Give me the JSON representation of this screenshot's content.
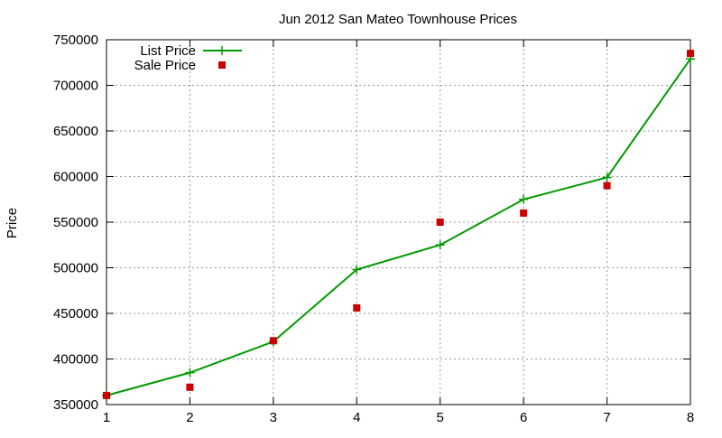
{
  "chart_data": {
    "type": "line",
    "title": "Jun 2012 San Mateo Townhouse Prices",
    "xlabel": "",
    "ylabel": "Price",
    "x": [
      1,
      2,
      3,
      4,
      5,
      6,
      7,
      8
    ],
    "xlim": [
      1,
      8
    ],
    "ylim": [
      350000,
      750000
    ],
    "xticks": [
      "1",
      "2",
      "3",
      "4",
      "5",
      "6",
      "7",
      "8"
    ],
    "yticks": [
      "350000",
      "400000",
      "450000",
      "500000",
      "550000",
      "600000",
      "650000",
      "700000",
      "750000"
    ],
    "grid": true,
    "legend_position": "top-left",
    "series": [
      {
        "name": "List Price",
        "style": "line-with-plus-markers",
        "color": "#009900",
        "values": [
          360000,
          385000,
          419000,
          498000,
          525000,
          575000,
          599000,
          729000
        ]
      },
      {
        "name": "Sale Price",
        "style": "square-markers",
        "color": "#cc0000",
        "values": [
          360000,
          369000,
          420000,
          456000,
          550000,
          560000,
          590000,
          735000
        ]
      }
    ]
  }
}
